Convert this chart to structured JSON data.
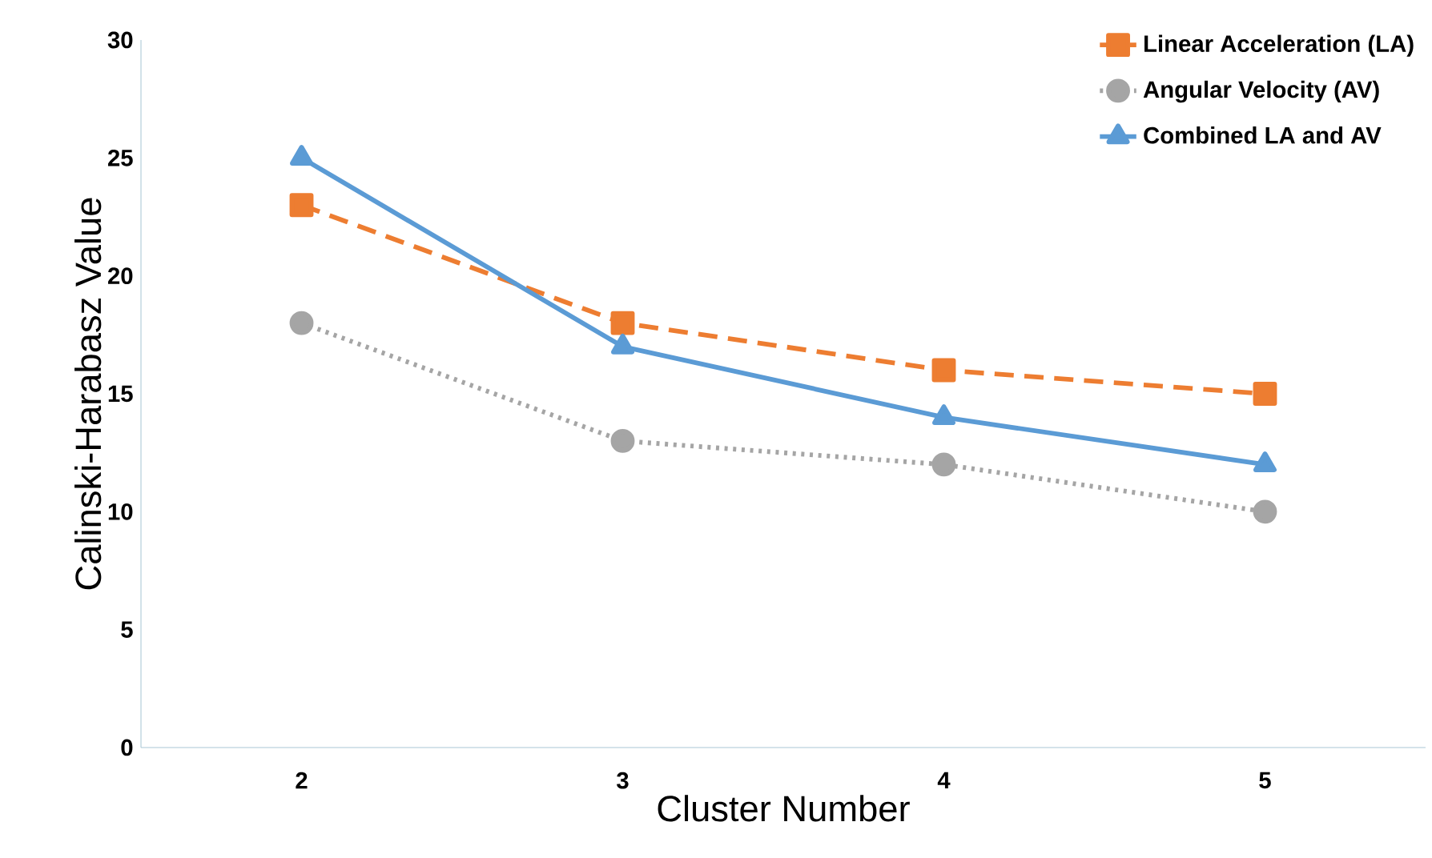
{
  "chart_data": {
    "type": "line",
    "xlabel": "Cluster Number",
    "ylabel": "Calinski-Harabasz  Value",
    "categories": [
      "2",
      "3",
      "4",
      "5"
    ],
    "series": [
      {
        "name": "Linear Acceleration (LA)",
        "color": "#ed7d31",
        "values": [
          23,
          18,
          16,
          15
        ],
        "marker": "square",
        "line_style": "dashed"
      },
      {
        "name": "Angular Velocity (AV)",
        "color": "#a5a5a5",
        "values": [
          18,
          13,
          12,
          10
        ],
        "marker": "circle",
        "line_style": "dotted"
      },
      {
        "name": "Combined LA and AV",
        "color": "#5b9bd5",
        "values": [
          25,
          17,
          14,
          12
        ],
        "marker": "triangle",
        "line_style": "solid"
      }
    ],
    "ylim": [
      0,
      30
    ],
    "yticks": [
      0,
      5,
      10,
      15,
      20,
      25,
      30
    ],
    "grid": false,
    "legend": "top right"
  }
}
